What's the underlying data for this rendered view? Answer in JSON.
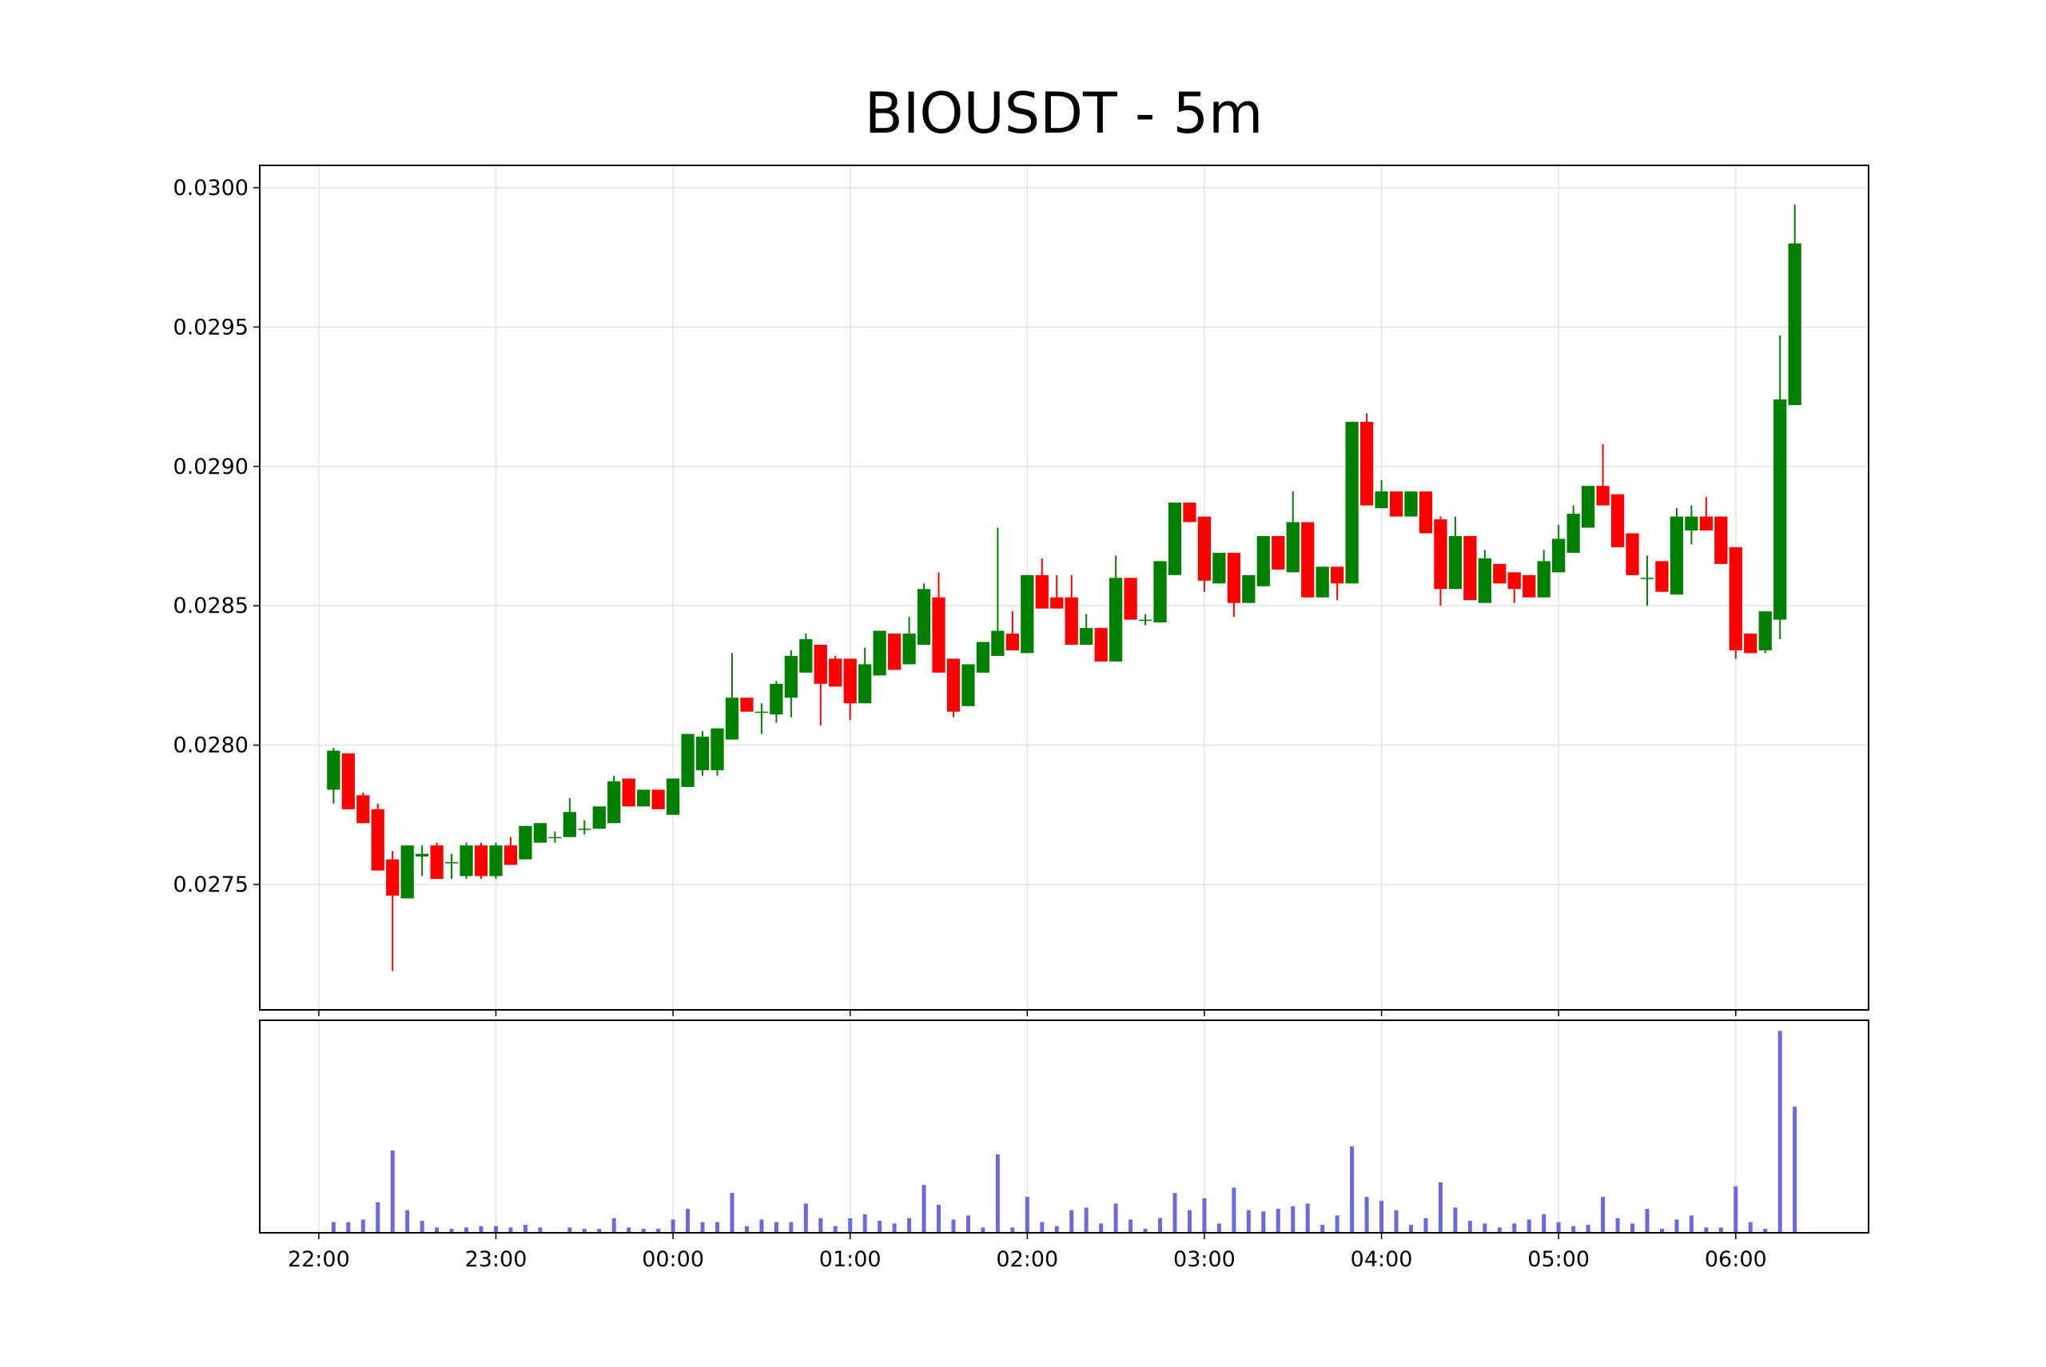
{
  "chart_data": {
    "type": "candlestick",
    "title": "BIOUSDT - 5m",
    "x": [
      "22:05",
      "22:10",
      "22:15",
      "22:20",
      "22:25",
      "22:30",
      "22:35",
      "22:40",
      "22:45",
      "22:50",
      "22:55",
      "23:00",
      "23:05",
      "23:10",
      "23:15",
      "23:20",
      "23:25",
      "23:30",
      "23:35",
      "23:40",
      "23:45",
      "23:50",
      "23:55",
      "00:00",
      "00:05",
      "00:10",
      "00:15",
      "00:20",
      "00:25",
      "00:30",
      "00:35",
      "00:40",
      "00:45",
      "00:50",
      "00:55",
      "01:00",
      "01:05",
      "01:10",
      "01:15",
      "01:20",
      "01:25",
      "01:30",
      "01:35",
      "01:40",
      "01:45",
      "01:50",
      "01:55",
      "02:00",
      "02:05",
      "02:10",
      "02:15",
      "02:20",
      "02:25",
      "02:30",
      "02:35",
      "02:40",
      "02:45",
      "02:50",
      "02:55",
      "03:00",
      "03:05",
      "03:10",
      "03:15",
      "03:20",
      "03:25",
      "03:30",
      "03:35",
      "03:40",
      "03:45",
      "03:50",
      "03:55",
      "04:00",
      "04:05",
      "04:10",
      "04:15",
      "04:20",
      "04:25",
      "04:30",
      "04:35",
      "04:40",
      "04:45",
      "04:50",
      "04:55",
      "05:00",
      "05:05",
      "05:10",
      "05:15",
      "05:20",
      "05:25",
      "05:30",
      "05:35",
      "05:40",
      "05:45",
      "05:50",
      "05:55",
      "06:00",
      "06:05",
      "06:10",
      "06:15",
      "06:20"
    ],
    "open": [
      0.02784,
      0.02797,
      0.02782,
      0.02777,
      0.02759,
      0.02745,
      0.0276,
      0.02764,
      0.02758,
      0.02753,
      0.02764,
      0.02753,
      0.02764,
      0.02759,
      0.02765,
      0.02767,
      0.02767,
      0.0277,
      0.0277,
      0.02772,
      0.02788,
      0.02778,
      0.02784,
      0.02775,
      0.02785,
      0.02791,
      0.02791,
      0.02802,
      0.02817,
      0.02812,
      0.02811,
      0.02817,
      0.02826,
      0.02836,
      0.02831,
      0.02831,
      0.02815,
      0.02825,
      0.0284,
      0.02829,
      0.02836,
      0.02853,
      0.02831,
      0.02814,
      0.02826,
      0.02832,
      0.0284,
      0.02833,
      0.02861,
      0.02853,
      0.02853,
      0.02836,
      0.02842,
      0.0283,
      0.0286,
      0.02845,
      0.02844,
      0.02861,
      0.02887,
      0.02882,
      0.02858,
      0.02869,
      0.02851,
      0.02857,
      0.02875,
      0.02862,
      0.0288,
      0.02853,
      0.02864,
      0.02858,
      0.02916,
      0.02885,
      0.02891,
      0.02882,
      0.02891,
      0.02881,
      0.02856,
      0.02875,
      0.02851,
      0.02865,
      0.02862,
      0.02861,
      0.02853,
      0.02862,
      0.02869,
      0.02878,
      0.02893,
      0.0289,
      0.02876,
      0.0286,
      0.02866,
      0.02854,
      0.02877,
      0.02882,
      0.02882,
      0.02871,
      0.0284,
      0.02834,
      0.02845,
      0.02922
    ],
    "high": [
      0.02799,
      0.02797,
      0.02783,
      0.02779,
      0.02762,
      0.02764,
      0.02764,
      0.02765,
      0.02761,
      0.02765,
      0.02765,
      0.02765,
      0.02767,
      0.02771,
      0.02772,
      0.02769,
      0.02781,
      0.02773,
      0.02778,
      0.02789,
      0.02788,
      0.02784,
      0.02784,
      0.02788,
      0.02804,
      0.02805,
      0.02806,
      0.02833,
      0.02817,
      0.02815,
      0.02823,
      0.02834,
      0.0284,
      0.02836,
      0.02832,
      0.02831,
      0.02835,
      0.02841,
      0.0284,
      0.02846,
      0.02858,
      0.02862,
      0.02831,
      0.02829,
      0.02837,
      0.02878,
      0.02848,
      0.02861,
      0.02867,
      0.02861,
      0.02861,
      0.02847,
      0.02842,
      0.02868,
      0.0286,
      0.02847,
      0.02866,
      0.02887,
      0.02887,
      0.02882,
      0.02869,
      0.02869,
      0.02861,
      0.02875,
      0.02875,
      0.02891,
      0.0288,
      0.02864,
      0.02864,
      0.02916,
      0.02919,
      0.02895,
      0.02891,
      0.02891,
      0.02891,
      0.02882,
      0.02882,
      0.02875,
      0.0287,
      0.02865,
      0.02862,
      0.02861,
      0.0287,
      0.02879,
      0.02886,
      0.02893,
      0.02908,
      0.0289,
      0.02876,
      0.02868,
      0.02866,
      0.02885,
      0.02886,
      0.02889,
      0.02882,
      0.02871,
      0.0284,
      0.02848,
      0.02947,
      0.02994
    ],
    "low": [
      0.02779,
      0.02777,
      0.02772,
      0.02755,
      0.02719,
      0.02745,
      0.02753,
      0.02752,
      0.02752,
      0.02752,
      0.02752,
      0.02752,
      0.02757,
      0.02759,
      0.02765,
      0.02765,
      0.02767,
      0.02768,
      0.0277,
      0.02772,
      0.02778,
      0.02778,
      0.02777,
      0.02775,
      0.02785,
      0.02789,
      0.02789,
      0.02802,
      0.02812,
      0.02804,
      0.02808,
      0.0281,
      0.02826,
      0.02807,
      0.02821,
      0.02809,
      0.02815,
      0.02825,
      0.02827,
      0.02829,
      0.02836,
      0.02826,
      0.0281,
      0.02814,
      0.02826,
      0.02832,
      0.02834,
      0.02833,
      0.02849,
      0.02849,
      0.02836,
      0.02836,
      0.0283,
      0.0283,
      0.02845,
      0.02843,
      0.02844,
      0.02861,
      0.0288,
      0.02855,
      0.02858,
      0.02846,
      0.02851,
      0.02857,
      0.02863,
      0.02862,
      0.02853,
      0.02853,
      0.02852,
      0.02858,
      0.02886,
      0.02885,
      0.02882,
      0.02882,
      0.02876,
      0.0285,
      0.02856,
      0.02852,
      0.02851,
      0.02858,
      0.02851,
      0.02853,
      0.02853,
      0.02862,
      0.02869,
      0.02878,
      0.02886,
      0.02871,
      0.02861,
      0.0285,
      0.02855,
      0.02854,
      0.02872,
      0.02877,
      0.02865,
      0.02831,
      0.02833,
      0.02833,
      0.02838,
      0.02922
    ],
    "close": [
      0.02798,
      0.02777,
      0.02772,
      0.02755,
      0.02746,
      0.02764,
      0.02761,
      0.02752,
      0.02758,
      0.02764,
      0.02753,
      0.02764,
      0.02757,
      0.02771,
      0.02772,
      0.02767,
      0.02776,
      0.0277,
      0.02778,
      0.02787,
      0.02778,
      0.02784,
      0.02777,
      0.02788,
      0.02804,
      0.02803,
      0.02806,
      0.02817,
      0.02812,
      0.02812,
      0.02822,
      0.02832,
      0.02838,
      0.02822,
      0.02821,
      0.02815,
      0.02829,
      0.02841,
      0.02827,
      0.0284,
      0.02856,
      0.02826,
      0.02812,
      0.02829,
      0.02837,
      0.02841,
      0.02834,
      0.02861,
      0.02849,
      0.02849,
      0.02836,
      0.02842,
      0.0283,
      0.0286,
      0.02845,
      0.02845,
      0.02866,
      0.02887,
      0.0288,
      0.02859,
      0.02869,
      0.02851,
      0.02861,
      0.02875,
      0.02863,
      0.0288,
      0.02853,
      0.02864,
      0.02858,
      0.02916,
      0.02886,
      0.02891,
      0.02882,
      0.02891,
      0.02876,
      0.02856,
      0.02875,
      0.02852,
      0.02867,
      0.02858,
      0.02856,
      0.02853,
      0.02866,
      0.02874,
      0.02883,
      0.02893,
      0.02886,
      0.02871,
      0.02861,
      0.0286,
      0.02855,
      0.02882,
      0.02882,
      0.02877,
      0.02865,
      0.02834,
      0.02833,
      0.02848,
      0.02924,
      0.0298
    ],
    "up_color": "#008000",
    "down_color": "#ff0000",
    "ylim": [
      0.02705,
      0.03008
    ],
    "yticks": [
      {
        "value": 0.0275,
        "label": "0.0275"
      },
      {
        "value": 0.028,
        "label": "0.0280"
      },
      {
        "value": 0.0285,
        "label": "0.0285"
      },
      {
        "value": 0.029,
        "label": "0.0290"
      },
      {
        "value": 0.0295,
        "label": "0.0295"
      },
      {
        "value": 0.03,
        "label": "0.0300"
      }
    ],
    "xlim": [
      "21:40",
      "06:45"
    ],
    "xticks": [
      "22:00",
      "23:00",
      "00:00",
      "01:00",
      "02:00",
      "03:00",
      "04:00",
      "05:00",
      "06:00"
    ],
    "grid": true,
    "volume": {
      "color": "#6a6ae0",
      "ylim": [
        0,
        160
      ],
      "values": [
        8,
        8,
        10,
        23,
        62,
        17,
        9,
        4,
        3,
        4,
        5,
        5,
        4,
        6,
        4,
        0,
        4,
        3,
        3,
        11,
        4,
        3,
        3,
        10,
        18,
        8,
        8,
        30,
        5,
        10,
        8,
        8,
        22,
        11,
        5,
        11,
        14,
        9,
        7,
        11,
        36,
        21,
        10,
        13,
        4,
        59,
        4,
        27,
        8,
        5,
        17,
        19,
        7,
        22,
        10,
        3,
        11,
        30,
        17,
        26,
        7,
        34,
        17,
        16,
        18,
        20,
        22,
        6,
        13,
        65,
        27,
        24,
        17,
        6,
        11,
        38,
        19,
        9,
        7,
        4,
        7,
        10,
        14,
        8,
        5,
        6,
        27,
        11,
        7,
        18,
        3,
        10,
        13,
        4,
        4,
        35,
        8,
        3,
        152,
        95
      ]
    }
  }
}
